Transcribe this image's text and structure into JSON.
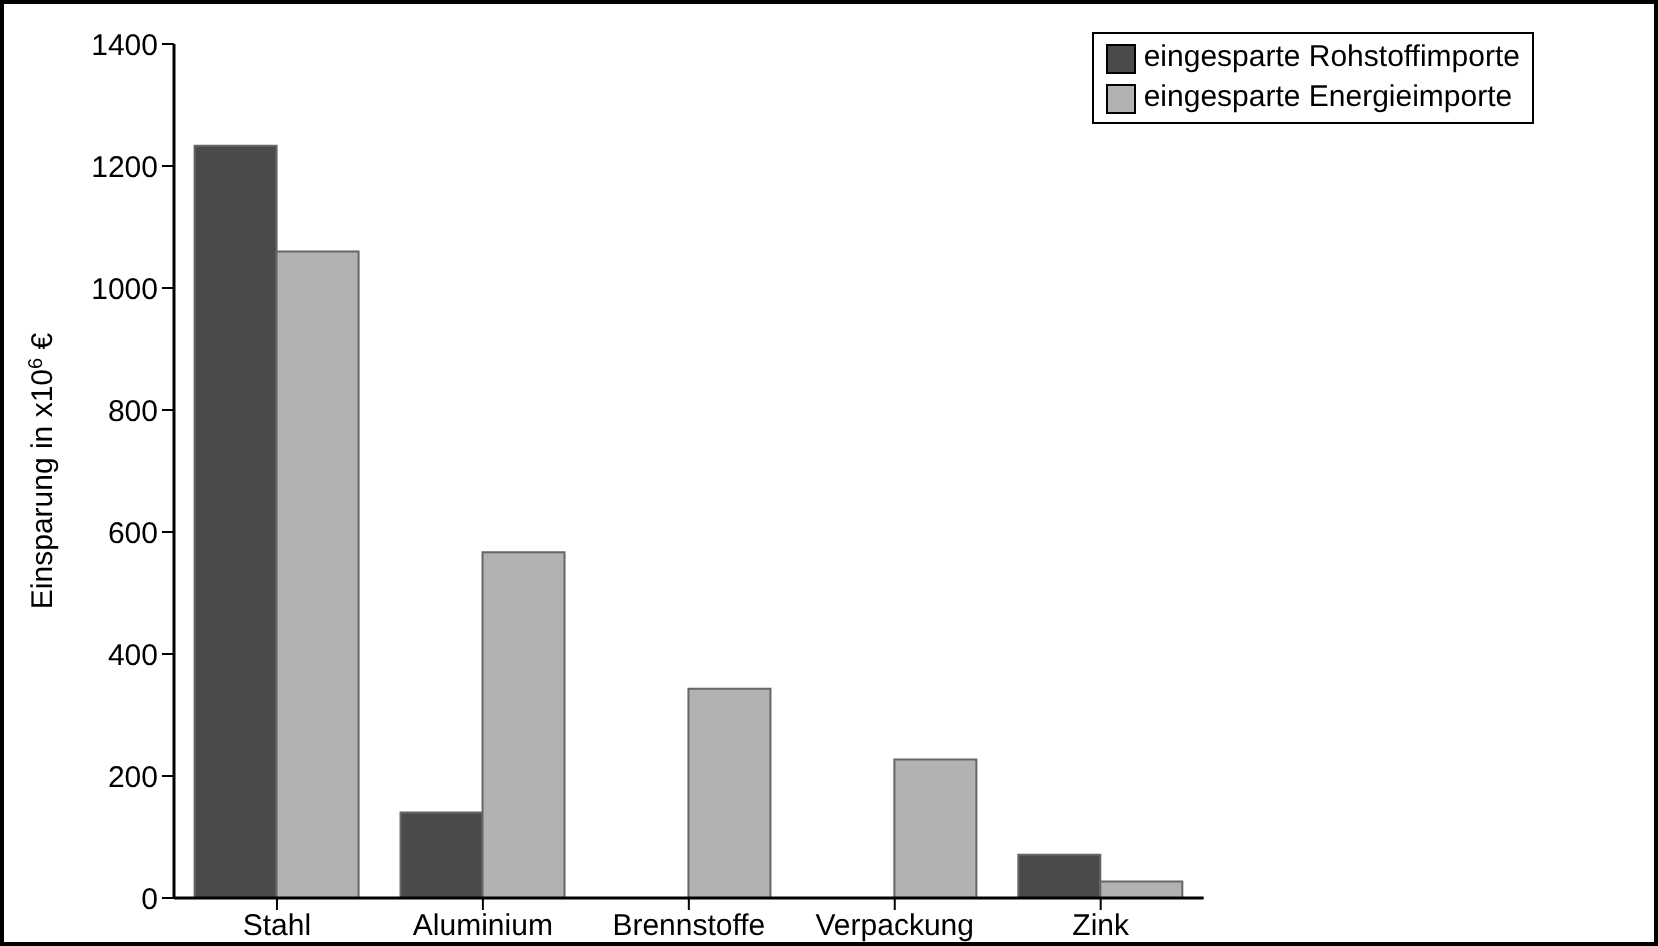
{
  "chart_data": {
    "type": "bar",
    "ylabel": "Einsparung in x10$^{6}$ €",
    "categories": [
      "Stahl",
      "Aluminium",
      "Brennstoffe",
      "Verpackung",
      "Zink"
    ],
    "series": [
      {
        "name": "eingesparte Rohstoffimporte",
        "color": "#4a4a4a",
        "values": [
          1233,
          140,
          null,
          null,
          71
        ]
      },
      {
        "name": "eingesparte Energieimporte",
        "color": "#b2b2b2",
        "values": [
          1060,
          567,
          343,
          227,
          27
        ]
      }
    ],
    "ylim": [
      0,
      1400
    ],
    "yticks": [
      0,
      200,
      400,
      600,
      800,
      1000,
      1200,
      1400
    ],
    "grid": false,
    "legend": "top right"
  }
}
